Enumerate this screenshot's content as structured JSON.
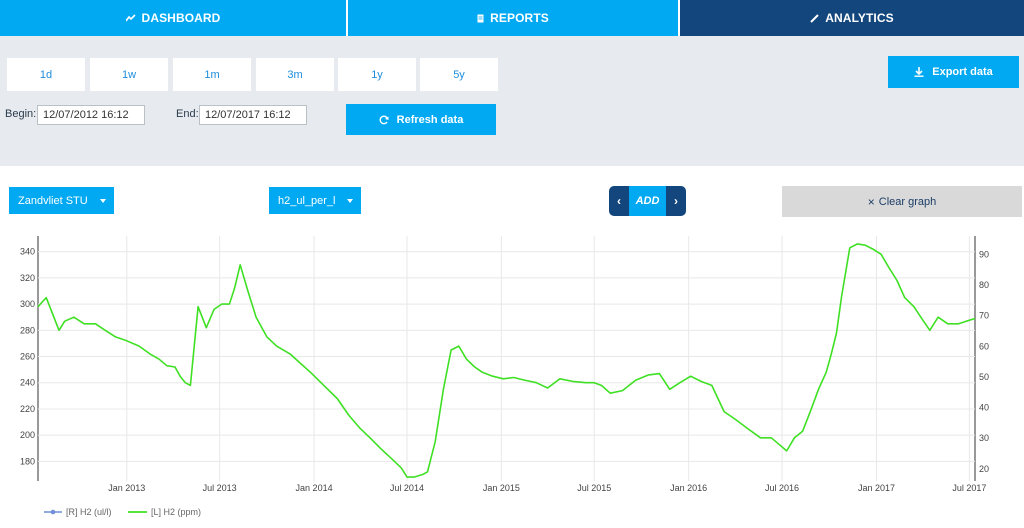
{
  "nav": {
    "tabs": [
      {
        "label": "DASHBOARD",
        "icon": "line-chart-icon"
      },
      {
        "label": "REPORTS",
        "icon": "file-icon"
      },
      {
        "label": "ANALYTICS",
        "icon": "pencil-icon",
        "active": true
      }
    ]
  },
  "ranges": [
    "1d",
    "1w",
    "1m",
    "3m",
    "1y",
    "5y"
  ],
  "begin": {
    "label": "Begin:",
    "value": "12/07/2012 16:12"
  },
  "end": {
    "label": "End:",
    "value": "12/07/2017 16:12"
  },
  "buttons": {
    "refresh": "Refresh data",
    "export": "Export data",
    "add": "ADD",
    "clear": "Clear graph"
  },
  "selectors": {
    "station": "Zandvliet STU",
    "parameter": "h2_ul_per_l"
  },
  "colors": {
    "primary": "#00a9f2",
    "dark": "#12467c",
    "panel": "#e7ebef",
    "series_left": "#3fe024",
    "series_right": "#6f8fd8"
  },
  "chart_data": {
    "type": "line",
    "x_tick_labels": [
      "Jan 2013",
      "Jul 2013",
      "Jan 2014",
      "Jul 2014",
      "Jan 2015",
      "Jul 2015",
      "Jan 2016",
      "Jul 2016",
      "Jan 2017",
      "Jul 2017"
    ],
    "y_left": {
      "ticks": [
        180,
        200,
        220,
        240,
        260,
        280,
        300,
        320,
        340
      ],
      "range": [
        165,
        352
      ]
    },
    "y_right": {
      "ticks": [
        20,
        30,
        40,
        50,
        60,
        70,
        80,
        90
      ],
      "range": [
        16,
        96
      ]
    },
    "x_range": [
      "2012-07-12",
      "2017-07-12"
    ],
    "grid": true,
    "legend_position": "bottom-left",
    "series": [
      {
        "name": "[R] H2 (ul/l)",
        "axis": "right",
        "x": [],
        "y": []
      },
      {
        "name": "[L] H2 (ppm)",
        "axis": "left",
        "x": [
          "2012-07-12",
          "2012-07-28",
          "2012-08-12",
          "2012-08-22",
          "2012-09-02",
          "2012-09-20",
          "2012-10-10",
          "2012-11-01",
          "2012-11-20",
          "2012-12-10",
          "2013-01-01",
          "2013-01-25",
          "2013-02-15",
          "2013-03-05",
          "2013-03-20",
          "2013-04-05",
          "2013-04-15",
          "2013-04-25",
          "2013-05-05",
          "2013-05-20",
          "2013-06-05",
          "2013-06-20",
          "2013-07-05",
          "2013-07-20",
          "2013-07-30",
          "2013-08-10",
          "2013-08-25",
          "2013-09-10",
          "2013-10-01",
          "2013-10-20",
          "2013-11-15",
          "2013-12-05",
          "2013-12-25",
          "2014-01-20",
          "2014-02-15",
          "2014-03-10",
          "2014-04-01",
          "2014-04-20",
          "2014-05-10",
          "2014-06-01",
          "2014-06-20",
          "2014-07-01",
          "2014-07-15",
          "2014-08-01",
          "2014-08-10",
          "2014-08-25",
          "2014-09-10",
          "2014-09-25",
          "2014-10-10",
          "2014-10-25",
          "2014-11-10",
          "2014-11-25",
          "2014-12-15",
          "2015-01-05",
          "2015-01-25",
          "2015-02-15",
          "2015-03-10",
          "2015-04-01",
          "2015-04-25",
          "2015-05-20",
          "2015-06-15",
          "2015-07-01",
          "2015-07-15",
          "2015-08-01",
          "2015-08-25",
          "2015-09-20",
          "2015-10-15",
          "2015-11-05",
          "2015-11-25",
          "2015-12-15",
          "2016-01-05",
          "2016-01-25",
          "2016-02-15",
          "2016-03-10",
          "2016-04-01",
          "2016-04-25",
          "2016-05-20",
          "2016-06-10",
          "2016-06-25",
          "2016-07-10",
          "2016-07-25",
          "2016-08-10",
          "2016-08-25",
          "2016-09-10",
          "2016-09-25",
          "2016-10-05",
          "2016-10-15",
          "2016-10-25",
          "2016-11-10",
          "2016-11-25",
          "2016-12-10",
          "2016-12-25",
          "2017-01-10",
          "2017-01-25",
          "2017-02-10",
          "2017-02-25",
          "2017-03-15",
          "2017-04-01",
          "2017-04-15",
          "2017-05-01",
          "2017-05-20",
          "2017-06-10",
          "2017-06-25",
          "2017-07-12"
        ],
        "y": [
          298,
          305,
          290,
          280,
          287,
          290,
          285,
          285,
          280,
          275,
          272,
          268,
          262,
          258,
          253,
          252,
          245,
          240,
          238,
          298,
          282,
          296,
          300,
          300,
          312,
          330,
          310,
          290,
          275,
          268,
          262,
          255,
          248,
          238,
          228,
          215,
          205,
          198,
          190,
          182,
          175,
          168,
          168,
          170,
          172,
          195,
          235,
          265,
          268,
          258,
          252,
          248,
          245,
          243,
          244,
          242,
          240,
          236,
          243,
          241,
          240,
          240,
          238,
          232,
          234,
          242,
          246,
          247,
          235,
          240,
          245,
          241,
          238,
          218,
          212,
          205,
          198,
          198,
          193,
          188,
          198,
          203,
          218,
          235,
          248,
          262,
          278,
          306,
          343,
          346,
          345,
          342,
          338,
          328,
          318,
          305,
          298,
          288,
          280,
          290,
          285,
          285,
          287,
          289
        ]
      }
    ]
  }
}
